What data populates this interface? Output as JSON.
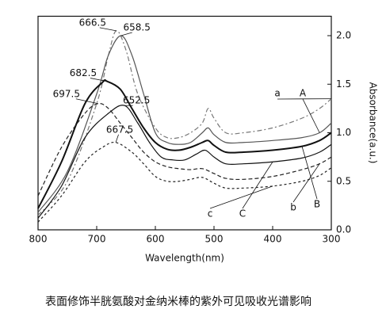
{
  "chart_data": {
    "type": "line",
    "xlabel": "Wavelength(nm)",
    "ylabel": "Absorbance(a.u.)",
    "caption": "表面修饰半胱氨酸对金纳米棒的紫外可见吸收光谱影响",
    "xlim": [
      800,
      300
    ],
    "ylim": [
      0,
      2.2
    ],
    "xticks": [
      800,
      700,
      600,
      500,
      400,
      300
    ],
    "yticks": [
      {
        "value": 0,
        "label": "0.0"
      },
      0.5,
      {
        "value": 1,
        "label": "1.0"
      },
      1.5,
      {
        "value": 2,
        "label": "2.0"
      }
    ],
    "series": [
      {
        "name": "a",
        "peak_label": "666.5",
        "color": "#777",
        "dash": "6 3 2 3",
        "x": [
          800,
          750,
          700,
          680,
          666.5,
          650,
          630,
          600,
          580,
          560,
          540,
          520,
          510,
          500,
          480,
          450,
          400,
          350,
          320,
          300
        ],
        "values": [
          0.15,
          0.5,
          1.3,
          1.8,
          2.05,
          1.85,
          1.4,
          1.05,
          0.95,
          0.95,
          1.0,
          1.1,
          1.25,
          1.15,
          1.0,
          1.0,
          1.05,
          1.15,
          1.25,
          1.35
        ]
      },
      {
        "name": "A",
        "peak_label": "658.5",
        "color": "#555",
        "dash": "none",
        "x": [
          800,
          750,
          700,
          680,
          658.5,
          640,
          620,
          600,
          580,
          560,
          540,
          520,
          510,
          500,
          480,
          450,
          400,
          350,
          320,
          300
        ],
        "values": [
          0.18,
          0.6,
          1.4,
          1.8,
          2.0,
          1.8,
          1.4,
          1.0,
          0.9,
          0.88,
          0.9,
          1.0,
          1.05,
          0.98,
          0.9,
          0.9,
          0.92,
          0.95,
          1.0,
          1.1
        ]
      },
      {
        "name": "B",
        "peak_label": "682.5",
        "color": "#111",
        "dash": "none",
        "x": [
          800,
          760,
          720,
          690,
          682.5,
          660,
          640,
          620,
          600,
          580,
          560,
          540,
          520,
          510,
          500,
          480,
          450,
          400,
          350,
          320,
          300
        ],
        "values": [
          0.22,
          0.7,
          1.3,
          1.52,
          1.53,
          1.45,
          1.25,
          1.05,
          0.9,
          0.83,
          0.82,
          0.85,
          0.9,
          0.92,
          0.87,
          0.8,
          0.8,
          0.82,
          0.86,
          0.92,
          1.0
        ]
      },
      {
        "name": "b",
        "peak_label": "697.5",
        "color": "#222",
        "dash": "5 3",
        "x": [
          800,
          760,
          720,
          697.5,
          680,
          660,
          640,
          620,
          600,
          580,
          560,
          540,
          520,
          500,
          480,
          450,
          400,
          350,
          320,
          300
        ],
        "values": [
          0.35,
          0.85,
          1.2,
          1.3,
          1.25,
          1.1,
          0.95,
          0.8,
          0.7,
          0.65,
          0.63,
          0.62,
          0.63,
          0.58,
          0.53,
          0.52,
          0.55,
          0.62,
          0.68,
          0.75
        ]
      },
      {
        "name": "C",
        "peak_label": "652.5",
        "color": "#111",
        "dash": "none",
        "x": [
          800,
          760,
          720,
          680,
          652.5,
          630,
          610,
          590,
          570,
          550,
          530,
          515,
          500,
          480,
          450,
          400,
          350,
          320,
          300
        ],
        "values": [
          0.12,
          0.45,
          0.95,
          1.2,
          1.28,
          1.1,
          0.9,
          0.75,
          0.72,
          0.72,
          0.78,
          0.82,
          0.75,
          0.68,
          0.68,
          0.7,
          0.74,
          0.8,
          0.88
        ]
      },
      {
        "name": "c",
        "peak_label": "667.5",
        "color": "#222",
        "dash": "3 3",
        "x": [
          800,
          760,
          720,
          690,
          667.5,
          640,
          620,
          600,
          580,
          560,
          540,
          520,
          500,
          480,
          450,
          400,
          350,
          320,
          300
        ],
        "values": [
          0.08,
          0.35,
          0.7,
          0.85,
          0.9,
          0.8,
          0.68,
          0.55,
          0.5,
          0.5,
          0.52,
          0.54,
          0.48,
          0.43,
          0.43,
          0.45,
          0.5,
          0.56,
          0.64
        ]
      }
    ]
  }
}
